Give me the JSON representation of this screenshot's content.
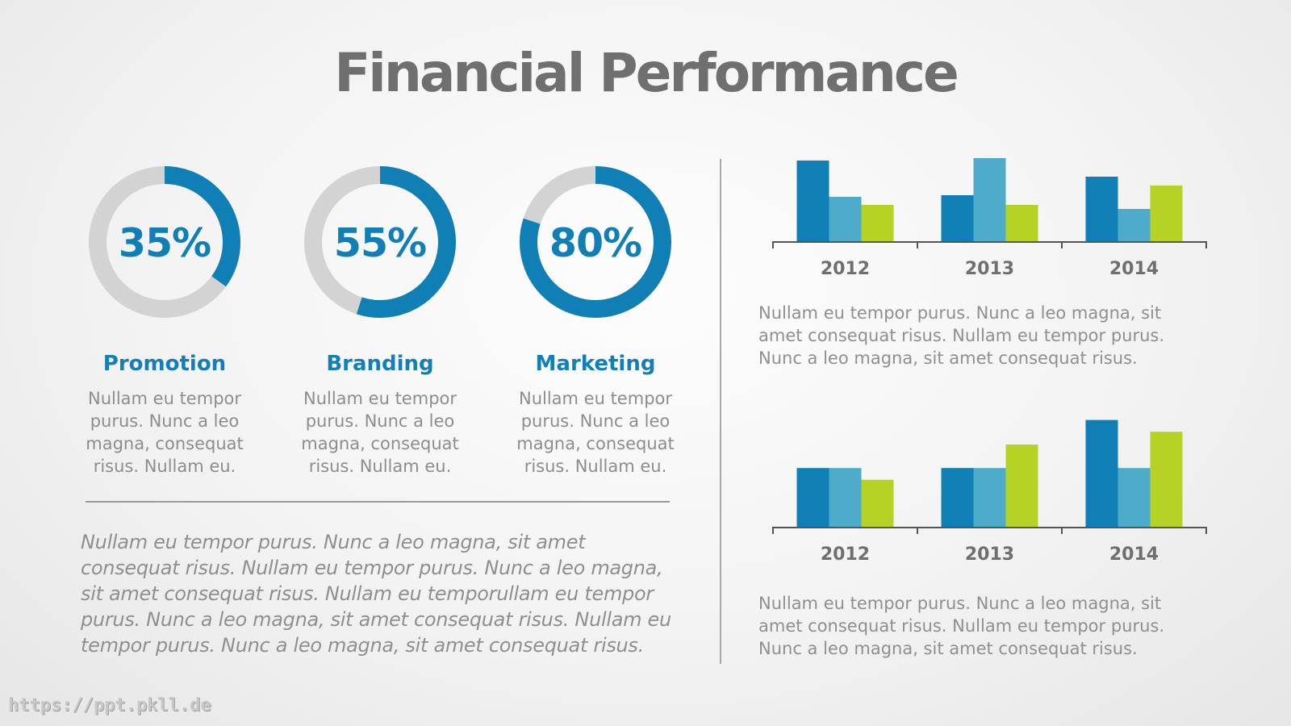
{
  "title": "Financial Performance",
  "colors": {
    "accent_dark": "#0f7fb5",
    "accent_light": "#4eaccb",
    "accent_green": "#b6d325",
    "ring_bg": "#d3d3d3",
    "text_gray": "#8f8f8f"
  },
  "donuts": [
    {
      "percent": 35,
      "label": "35%",
      "title": "Promotion",
      "text": "Nullam eu tempor purus. Nunc a leo magna, consequat risus. Nullam eu."
    },
    {
      "percent": 55,
      "label": "55%",
      "title": "Branding",
      "text": "Nullam eu tempor purus. Nunc a leo magna, consequat risus. Nullam eu."
    },
    {
      "percent": 80,
      "label": "80%",
      "title": "Marketing",
      "text": "Nullam eu tempor purus. Nunc a leo magna, consequat risus. Nullam eu."
    }
  ],
  "bottom_paragraph": "Nullam eu tempor purus. Nunc a leo magna, sit amet consequat risus. Nullam eu tempor purus. Nunc a leo magna, sit amet consequat risus. Nullam eu temporullam eu tempor purus. Nunc a leo magna, sit amet consequat risus. Nullam eu tempor purus. Nunc a leo magna, sit amet consequat risus.",
  "chart_descriptions": [
    "Nullam eu tempor purus. Nunc a leo magna, sit amet consequat risus. Nullam eu tempor purus. Nunc a leo magna, sit amet consequat risus.",
    "Nullam eu tempor purus. Nunc a leo magna, sit amet consequat risus. Nullam eu tempor purus. Nunc a leo magna, sit amet consequat risus."
  ],
  "watermark": "https://ppt.pkll.de",
  "chart_data": [
    {
      "type": "bar",
      "categories": [
        "2012",
        "2013",
        "2014"
      ],
      "series": [
        {
          "values": [
            100,
            57,
            80
          ]
        },
        {
          "values": [
            55,
            103,
            40
          ]
        },
        {
          "values": [
            45,
            45,
            69
          ]
        }
      ],
      "ylim": [
        0,
        105
      ],
      "grid": false,
      "legend": "none"
    },
    {
      "type": "bar",
      "categories": [
        "2012",
        "2013",
        "2014"
      ],
      "series": [
        {
          "values": [
            55,
            55,
            100
          ]
        },
        {
          "values": [
            55,
            55,
            55
          ]
        },
        {
          "values": [
            44,
            77,
            89
          ]
        }
      ],
      "ylim": [
        0,
        105
      ],
      "grid": false,
      "legend": "none"
    }
  ]
}
